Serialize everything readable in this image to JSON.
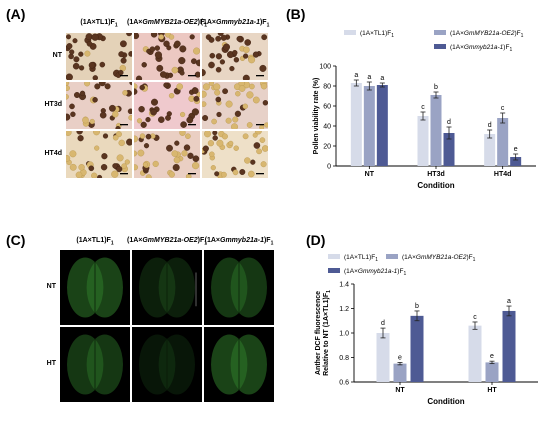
{
  "panels": {
    "A": {
      "label": "(A)",
      "columns": [
        "(1A×TL1)F",
        "(1A×GmMYB21a-OE2)F",
        "(1A×Gmmyb21a-1)F"
      ],
      "rows": [
        "NT",
        "HT3d",
        "HT4d"
      ]
    },
    "B": {
      "label": "(B)"
    },
    "C": {
      "label": "(C)",
      "columns": [
        "(1A×TL1)F",
        "(1A×GmMYB21a-OE2)F",
        "(1A×Gmmyb21a-1)F"
      ],
      "rows": [
        "NT",
        "HT"
      ]
    },
    "D": {
      "label": "(D)"
    }
  },
  "subscript": "1",
  "colors": {
    "tl1": "#d6dbe9",
    "oe2": "#9aa3c4",
    "myb": "#4e5a94",
    "pollen_bg": "#e8d9c0",
    "pollen_viable": "#5a3520",
    "pollen_nonviable": "#d8b770",
    "fluor_bg": "#000000",
    "fluor": "#2f7a2a"
  },
  "chart_data": [
    {
      "type": "bar",
      "ylabel": "Pollen viability rate (%)",
      "xlabel": "Condition",
      "categories": [
        "NT",
        "HT3d",
        "HT4d"
      ],
      "ylim": [
        0,
        100
      ],
      "yticks": [
        0,
        20,
        40,
        60,
        80,
        100
      ],
      "legend_position": "top-right",
      "series": [
        {
          "name": "(1A×TL1)F",
          "color": "#d6dbe9",
          "values": [
            83,
            50,
            32
          ],
          "errors": [
            3,
            4,
            4
          ],
          "letters": [
            "a",
            "c",
            "d"
          ]
        },
        {
          "name": "(1A×GmMYB21a-OE2)F",
          "color": "#9aa3c4",
          "values": [
            80,
            71,
            48
          ],
          "errors": [
            4,
            3,
            5
          ],
          "letters": [
            "a",
            "b",
            "c"
          ]
        },
        {
          "name": "(1A×Gmmyb21a-1)F",
          "color": "#4e5a94",
          "values": [
            81,
            33,
            9
          ],
          "errors": [
            2,
            6,
            3
          ],
          "letters": [
            "a",
            "d",
            "e"
          ]
        }
      ]
    },
    {
      "type": "bar",
      "ylabel": "Anther DCF fluorescence Relative  to NT (1A×TL1)F",
      "xlabel": "Condition",
      "categories": [
        "NT",
        "HT"
      ],
      "ylim": [
        0.6,
        1.4
      ],
      "yticks": [
        0.6,
        0.8,
        1.0,
        1.2,
        1.4
      ],
      "legend_position": "top",
      "series": [
        {
          "name": "(1A×TL1)F",
          "color": "#d6dbe9",
          "values": [
            1.0,
            1.06
          ],
          "errors": [
            0.04,
            0.03
          ],
          "letters": [
            "d",
            "c"
          ]
        },
        {
          "name": "(1A×GmMYB21a-OE2)F",
          "color": "#9aa3c4",
          "values": [
            0.75,
            0.76
          ],
          "errors": [
            0.01,
            0.01
          ],
          "letters": [
            "e",
            "e"
          ]
        },
        {
          "name": "(1A×Gmmyb21a-1)F",
          "color": "#4e5a94",
          "values": [
            1.14,
            1.18
          ],
          "errors": [
            0.04,
            0.04
          ],
          "letters": [
            "b",
            "a"
          ]
        }
      ]
    }
  ]
}
